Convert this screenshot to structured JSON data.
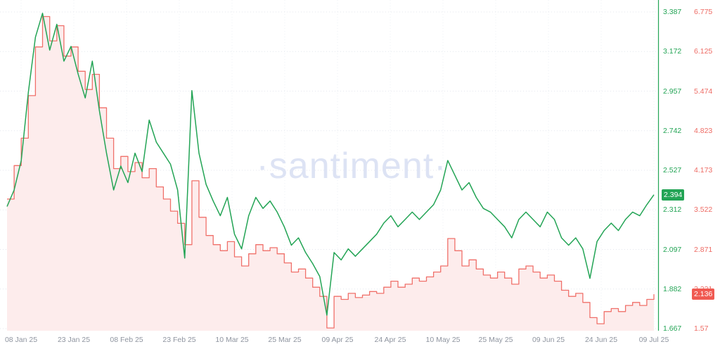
{
  "watermark": "·santiment·",
  "colors": {
    "green": "#23a455",
    "red": "#f0706a",
    "red_fill": "#fdecec",
    "grid": "#e4e7ee",
    "grid_v": "#eef0f5",
    "x_label": "#8f95a0",
    "watermark_color": "#dde3f4",
    "badge_green_bg": "#23a455",
    "badge_red_bg": "#f05a52"
  },
  "badges": {
    "green": "2.394",
    "red": "2.136"
  },
  "chart_data": {
    "type": "line",
    "title": "",
    "xlabel": "",
    "ylabel": "",
    "grid": true,
    "legend_position": "none",
    "x_tick_labels": [
      "08 Jan 25",
      "23 Jan 25",
      "08 Feb 25",
      "23 Feb 25",
      "10 Mar 25",
      "25 Mar 25",
      "09 Apr 25",
      "24 Apr 25",
      "10 May 25",
      "25 May 25",
      "09 Jun 25",
      "24 Jun 25",
      "09 Jul 25"
    ],
    "x_note": "points evenly spaced (~2 day interval) from 08 Jan 25 to 09 Jul 25",
    "axes": [
      {
        "side": "right-inner",
        "color": "green",
        "range": [
          1.667,
          3.387
        ],
        "tick_labels": [
          "3.387",
          "3.172",
          "2.957",
          "2.742",
          "2.527",
          "2.312",
          "2.097",
          "1.882",
          "1.667"
        ],
        "last_value": 2.394
      },
      {
        "side": "right-outer",
        "color": "red",
        "range": [
          1.57,
          6.775
        ],
        "tick_labels": [
          "6.775",
          "6.125",
          "5.474",
          "4.823",
          "4.173",
          "3.522",
          "2.871",
          "2.221",
          "1.57"
        ],
        "last_value": 2.136
      }
    ],
    "series": [
      {
        "name": "green_series",
        "style": "line",
        "axis": 0,
        "values": [
          2.33,
          2.42,
          2.58,
          2.95,
          3.25,
          3.38,
          3.18,
          3.32,
          3.12,
          3.2,
          3.05,
          2.92,
          3.12,
          2.85,
          2.62,
          2.42,
          2.55,
          2.46,
          2.62,
          2.52,
          2.8,
          2.68,
          2.62,
          2.56,
          2.42,
          2.05,
          2.96,
          2.62,
          2.45,
          2.36,
          2.28,
          2.38,
          2.18,
          2.1,
          2.28,
          2.38,
          2.32,
          2.36,
          2.3,
          2.22,
          2.12,
          2.16,
          2.08,
          2.02,
          1.95,
          1.74,
          2.08,
          2.04,
          2.1,
          2.06,
          2.1,
          2.14,
          2.18,
          2.24,
          2.28,
          2.22,
          2.26,
          2.3,
          2.26,
          2.3,
          2.34,
          2.42,
          2.58,
          2.5,
          2.42,
          2.46,
          2.38,
          2.32,
          2.3,
          2.26,
          2.22,
          2.16,
          2.26,
          2.3,
          2.26,
          2.22,
          2.3,
          2.26,
          2.16,
          2.12,
          2.16,
          2.1,
          1.94,
          2.14,
          2.2,
          2.24,
          2.2,
          2.26,
          2.3,
          2.28,
          2.34,
          2.394
        ]
      },
      {
        "name": "red_series",
        "style": "step-area",
        "axis": 1,
        "values": [
          3.7,
          4.25,
          4.7,
          5.4,
          6.2,
          6.7,
          6.3,
          6.55,
          6.05,
          6.2,
          5.8,
          5.5,
          5.75,
          5.2,
          4.7,
          4.2,
          4.4,
          4.15,
          4.3,
          4.05,
          4.2,
          3.9,
          3.7,
          3.5,
          3.3,
          2.95,
          4.0,
          3.4,
          3.1,
          2.95,
          2.85,
          3.0,
          2.75,
          2.6,
          2.8,
          2.95,
          2.85,
          2.9,
          2.8,
          2.65,
          2.5,
          2.55,
          2.4,
          2.25,
          2.1,
          1.58,
          2.1,
          2.05,
          2.15,
          2.08,
          2.12,
          2.18,
          2.15,
          2.25,
          2.35,
          2.25,
          2.3,
          2.4,
          2.35,
          2.42,
          2.5,
          2.6,
          3.05,
          2.85,
          2.6,
          2.7,
          2.55,
          2.45,
          2.4,
          2.5,
          2.4,
          2.3,
          2.55,
          2.6,
          2.5,
          2.4,
          2.45,
          2.35,
          2.2,
          2.1,
          2.15,
          2.0,
          1.75,
          1.65,
          1.85,
          1.9,
          1.85,
          1.95,
          2.0,
          1.95,
          2.05,
          2.136
        ]
      }
    ]
  }
}
